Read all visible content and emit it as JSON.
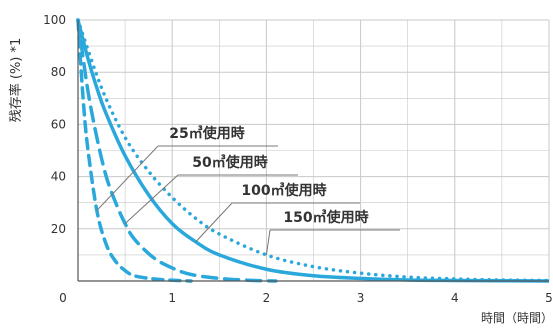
{
  "chart_data": {
    "type": "line",
    "ylabel": "残存率 (%) *1",
    "xlabel": "時間（時間）",
    "xlim": [
      0,
      5
    ],
    "ylim": [
      0,
      100
    ],
    "x_ticks": [
      "0",
      "1",
      "2",
      "3",
      "4",
      "5"
    ],
    "y_ticks": [
      "20",
      "40",
      "60",
      "80",
      "100"
    ],
    "grid": true,
    "line_color": "#2aa8dc",
    "grid_color": "#c8c8c8",
    "series": [
      {
        "name": "25㎥使用時",
        "style": "dashed-heavy",
        "x": [
          0,
          0.05,
          0.1,
          0.2,
          0.3,
          0.4,
          0.5,
          0.6,
          0.8,
          1.0,
          1.2
        ],
        "y": [
          100,
          72,
          52,
          27,
          14,
          7.5,
          4,
          2,
          0.8,
          0.3,
          0
        ]
      },
      {
        "name": "50㎥使用時",
        "style": "dashed",
        "x": [
          0,
          0.1,
          0.2,
          0.3,
          0.4,
          0.5,
          0.6,
          0.8,
          1.0,
          1.2,
          1.5,
          1.8,
          2.1
        ],
        "y": [
          100,
          74,
          55,
          40,
          30,
          22,
          16,
          9,
          5,
          2.5,
          1,
          0.3,
          0
        ]
      },
      {
        "name": "100㎥使用時",
        "style": "solid",
        "x": [
          0,
          0.1,
          0.2,
          0.3,
          0.5,
          0.75,
          1.0,
          1.25,
          1.5,
          2.0,
          2.5,
          3.0,
          3.5,
          4.0,
          5.0
        ],
        "y": [
          100,
          86,
          74,
          64,
          48,
          33,
          22,
          15,
          10,
          4.5,
          2,
          1,
          0.4,
          0.2,
          0
        ]
      },
      {
        "name": "150㎥使用時",
        "style": "dotted",
        "x": [
          0,
          0.25,
          0.5,
          0.75,
          1.0,
          1.25,
          1.5,
          2.0,
          2.5,
          3.0,
          3.5,
          4.0,
          4.5,
          5.0
        ],
        "y": [
          100,
          74,
          55,
          42,
          32,
          24,
          18,
          10,
          5.5,
          3,
          1.5,
          0.8,
          0.4,
          0.2
        ]
      }
    ]
  }
}
